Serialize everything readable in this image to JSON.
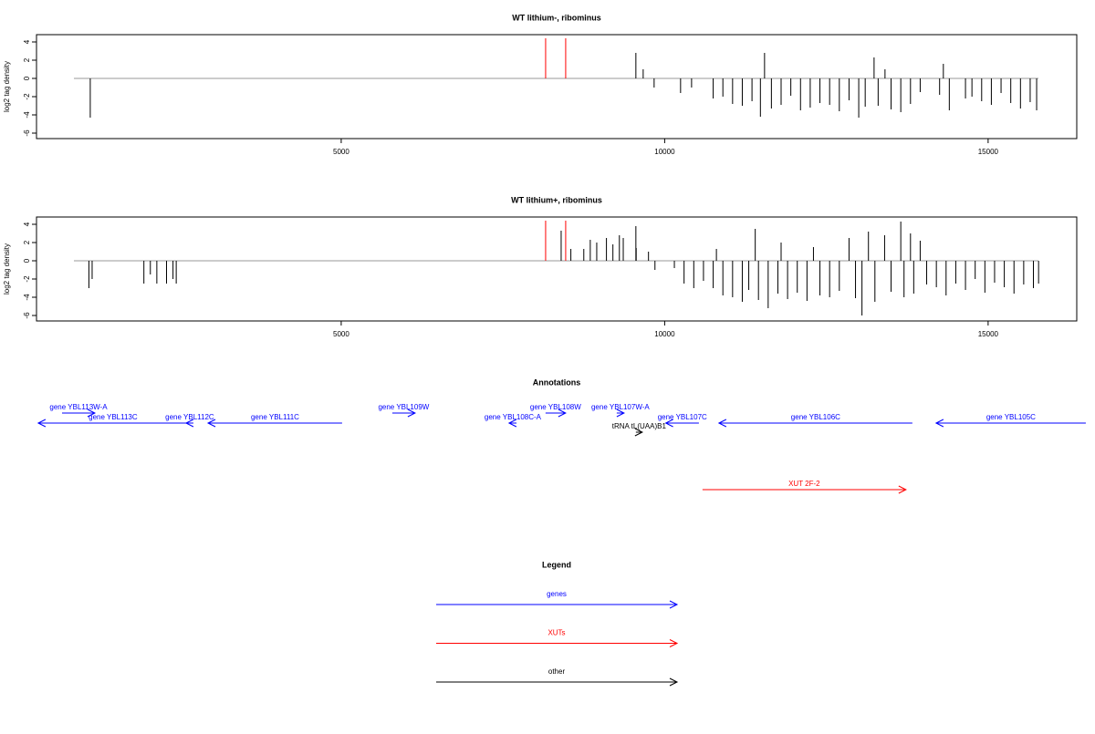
{
  "chart_data": [
    {
      "type": "bar",
      "title": "WT lithium-, ribominus",
      "ylabel": "log2 tag density",
      "xlim": [
        290,
        16370
      ],
      "xticks": [
        5000,
        10000,
        15000
      ],
      "ylim": [
        -6.6,
        4.8
      ],
      "yticks": [
        -6,
        -4,
        -2,
        0,
        2,
        4
      ],
      "series": [
        {
          "color": "#000000",
          "x": [
            1121,
            9555,
            9668,
            9837,
            10246,
            10416,
            10750,
            10900,
            11050,
            11200,
            11350,
            11480,
            11544,
            11650,
            11800,
            11950,
            12100,
            12250,
            12400,
            12550,
            12700,
            12850,
            13000,
            13100,
            13237,
            13300,
            13406,
            13500,
            13650,
            13800,
            13950,
            14250,
            14308,
            14400,
            14650,
            14750,
            14900,
            15050,
            15200,
            15350,
            15500,
            15650,
            15750
          ],
          "values": [
            -4.3,
            2.8,
            1.0,
            -1.0,
            -1.6,
            -1.0,
            -2.2,
            -2.0,
            -2.8,
            -3.0,
            -2.5,
            -4.2,
            2.8,
            -3.3,
            -2.9,
            -1.9,
            -3.5,
            -3.2,
            -2.7,
            -2.9,
            -3.6,
            -2.4,
            -4.3,
            -3.1,
            2.3,
            -3.0,
            1.0,
            -3.4,
            -3.7,
            -2.8,
            -1.5,
            -1.8,
            1.6,
            -3.5,
            -2.2,
            -2.0,
            -2.5,
            -2.9,
            -1.6,
            -2.7,
            -3.3,
            -2.6,
            -3.5
          ]
        },
        {
          "color": "#ff0000",
          "x": [
            8160,
            8470
          ],
          "values": [
            4.4,
            4.4
          ]
        }
      ]
    },
    {
      "type": "bar",
      "title": "WT lithium+, ribominus",
      "ylabel": "log2 tag density",
      "xlim": [
        290,
        16370
      ],
      "xticks": [
        5000,
        10000,
        15000
      ],
      "ylim": [
        -6.6,
        4.8
      ],
      "yticks": [
        -6,
        -4,
        -2,
        0,
        2,
        4
      ],
      "series": [
        {
          "color": "#000000",
          "x": [
            1100,
            1150,
            1950,
            2050,
            2150,
            2300,
            2400,
            2450,
            8400,
            8550,
            8750,
            8850,
            8950,
            9100,
            9200,
            9300,
            9360,
            9555,
            9560,
            9750,
            9850,
            10150,
            10300,
            10450,
            10600,
            10750,
            10800,
            10900,
            11050,
            11200,
            11300,
            11400,
            11450,
            11600,
            11750,
            11800,
            11900,
            12050,
            12200,
            12300,
            12400,
            12550,
            12700,
            12850,
            12950,
            13050,
            13150,
            13250,
            13400,
            13500,
            13650,
            13700,
            13800,
            13850,
            13950,
            14050,
            14200,
            14350,
            14500,
            14650,
            14800,
            14950,
            15100,
            15250,
            15400,
            15550,
            15700,
            15780
          ],
          "values": [
            -3.0,
            -2.0,
            -2.5,
            -1.5,
            -2.5,
            -2.5,
            -2.0,
            -2.5,
            3.3,
            1.3,
            1.3,
            2.3,
            2.0,
            2.5,
            1.8,
            2.8,
            2.5,
            3.8,
            1.4,
            1.0,
            -1.0,
            -0.8,
            -2.5,
            -3.0,
            -2.2,
            -3.0,
            1.3,
            -3.8,
            -4.0,
            -4.5,
            -3.2,
            3.5,
            -4.3,
            -5.2,
            -3.6,
            2.0,
            -4.2,
            -3.5,
            -4.4,
            1.5,
            -3.8,
            -4.0,
            -3.3,
            2.5,
            -4.1,
            -6.0,
            3.2,
            -4.5,
            2.8,
            -3.4,
            4.3,
            -4.0,
            3.0,
            -3.6,
            2.2,
            -2.6,
            -2.9,
            -3.8,
            -2.5,
            -3.2,
            -2.0,
            -3.5,
            -2.4,
            -2.9,
            -3.6,
            -2.6,
            -3.0,
            -2.5
          ]
        },
        {
          "color": "#ff0000",
          "x": [
            8160,
            8470
          ],
          "values": [
            4.4,
            4.4
          ]
        }
      ]
    }
  ],
  "annotations": {
    "title": "Annotations",
    "items": [
      {
        "label": "gene YBL113W-A",
        "start": 685,
        "end": 1192,
        "color": "#0000ff"
      },
      {
        "label": "gene YBL113C",
        "start": 2630,
        "end": 317,
        "color": "#0000ff"
      },
      {
        "label": "gene YBL112C",
        "start": 2715,
        "end": 2602,
        "color": "#0000ff"
      },
      {
        "label": "gene YBL111C",
        "start": 5014,
        "end": 2942,
        "color": "#0000ff"
      },
      {
        "label": "gene YBL109W",
        "start": 5790,
        "end": 6142,
        "color": "#0000ff"
      },
      {
        "label": "gene YBL108C-A",
        "start": 7710,
        "end": 7595,
        "color": "#0000ff"
      },
      {
        "label": "gene YBL108W",
        "start": 8159,
        "end": 8469,
        "color": "#0000ff"
      },
      {
        "label": "gene YBL107W-A",
        "start": 9259,
        "end": 9372,
        "color": "#0000ff"
      },
      {
        "label": "gene YBL107C",
        "start": 10529,
        "end": 10017,
        "color": "#0000ff"
      },
      {
        "label": "tRNA tL(UAA)B1",
        "start": 9555,
        "end": 9654,
        "color": "#000000"
      },
      {
        "label": "gene YBL106C",
        "start": 13829,
        "end": 10839,
        "color": "#0000ff"
      },
      {
        "label": "gene YBL105C",
        "start": 16510,
        "end": 14196,
        "color": "#0000ff"
      },
      {
        "label": "XUT 2F-2",
        "start": 10585,
        "end": 13730,
        "color": "#ff0000"
      }
    ]
  },
  "legend": {
    "title": "Legend",
    "items": [
      {
        "label": "genes",
        "color": "#0000ff"
      },
      {
        "label": "XUTs",
        "color": "#ff0000"
      },
      {
        "label": "other",
        "color": "#000000"
      }
    ]
  }
}
